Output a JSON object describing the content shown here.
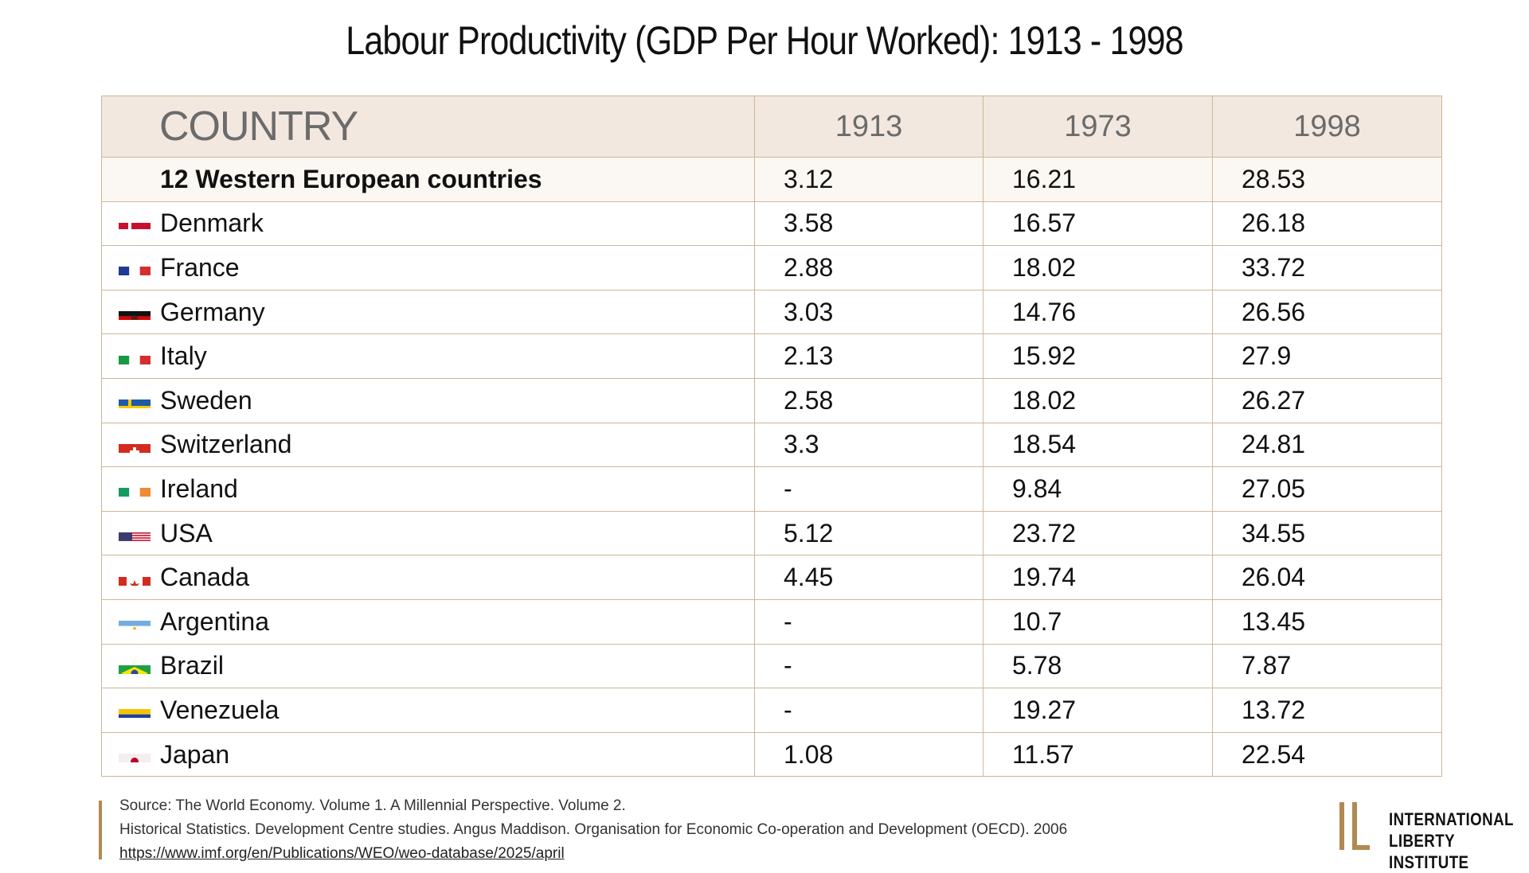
{
  "title": "Labour Productivity (GDP Per Hour Worked): 1913 - 1998",
  "chart_data": {
    "type": "table",
    "title": "Labour Productivity (GDP Per Hour Worked): 1913 - 1998",
    "columns": [
      "COUNTRY",
      "1913",
      "1973",
      "1998"
    ],
    "rows": [
      {
        "country": "12 Western European countries",
        "flag": "",
        "values": [
          "3.12",
          "16.21",
          "28.53"
        ]
      },
      {
        "country": "Denmark",
        "flag": "denmark-flag-icon",
        "values": [
          "3.58",
          "16.57",
          "26.18"
        ]
      },
      {
        "country": "France",
        "flag": "france-flag-icon",
        "values": [
          "2.88",
          "18.02",
          "33.72"
        ]
      },
      {
        "country": "Germany",
        "flag": "germany-flag-icon",
        "values": [
          "3.03",
          "14.76",
          "26.56"
        ]
      },
      {
        "country": "Italy",
        "flag": "italy-flag-icon",
        "values": [
          "2.13",
          "15.92",
          "27.9"
        ]
      },
      {
        "country": "Sweden",
        "flag": "sweden-flag-icon",
        "values": [
          "2.58",
          "18.02",
          "26.27"
        ]
      },
      {
        "country": "Switzerland",
        "flag": "switzerland-flag-icon",
        "values": [
          "3.3",
          "18.54",
          "24.81"
        ]
      },
      {
        "country": "Ireland",
        "flag": "ireland-flag-icon",
        "values": [
          "-",
          "9.84",
          "27.05"
        ]
      },
      {
        "country": "USA",
        "flag": "usa-flag-icon",
        "values": [
          "5.12",
          "23.72",
          "34.55"
        ]
      },
      {
        "country": "Canada",
        "flag": "canada-flag-icon",
        "values": [
          "4.45",
          "19.74",
          "26.04"
        ]
      },
      {
        "country": "Argentina",
        "flag": "argentina-flag-icon",
        "values": [
          "-",
          "10.7",
          "13.45"
        ]
      },
      {
        "country": "Brazil",
        "flag": "brazil-flag-icon",
        "values": [
          "-",
          "5.78",
          "7.87"
        ]
      },
      {
        "country": "Venezuela",
        "flag": "venezuela-flag-icon",
        "values": [
          "-",
          "19.27",
          "13.72"
        ]
      },
      {
        "country": "Japan",
        "flag": "japan-flag-icon",
        "values": [
          "1.08",
          "11.57",
          "22.54"
        ]
      }
    ]
  },
  "footer": {
    "line1": "Source: The World Economy. Volume 1. A Millennial Perspective. Volume 2.",
    "line2": "Historical Statistics. Development Centre studies. Angus Maddison. Organisation for Economic Co-operation and Development (OECD). 2006",
    "link": "https://www.imf.org/en/Publications/WEO/weo-database/2025/april"
  },
  "logo": {
    "line1": "INTERNATIONAL",
    "line2": "LIBERTY INSTITUTE",
    "accent": "#b08a52"
  },
  "colors": {
    "header_bg": "#f2e8df",
    "region_bg": "#fbf7f2",
    "border": "#cdb79a"
  }
}
